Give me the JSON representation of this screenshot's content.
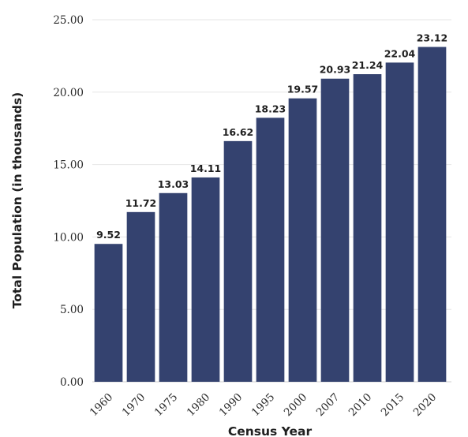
{
  "chart_data": {
    "type": "bar",
    "categories": [
      "1960",
      "1970",
      "1975",
      "1980",
      "1990",
      "1995",
      "2000",
      "2007",
      "2010",
      "2015",
      "2020"
    ],
    "values": [
      9.52,
      11.72,
      13.03,
      14.11,
      16.62,
      18.23,
      19.57,
      20.93,
      21.24,
      22.04,
      23.12
    ],
    "data_labels": [
      "9.52",
      "11.72",
      "13.03",
      "14.11",
      "16.62",
      "18.23",
      "19.57",
      "20.93",
      "21.24",
      "22.04",
      "23.12"
    ],
    "xlabel": "Census Year",
    "ylabel": "Total Population (in thousands)",
    "ylim": [
      0,
      25
    ],
    "yticks": [
      "0.00",
      "5.00",
      "10.00",
      "15.00",
      "20.00",
      "25.00"
    ],
    "grid": "horizontal",
    "legend": "none",
    "bar_color": "#34426f"
  }
}
